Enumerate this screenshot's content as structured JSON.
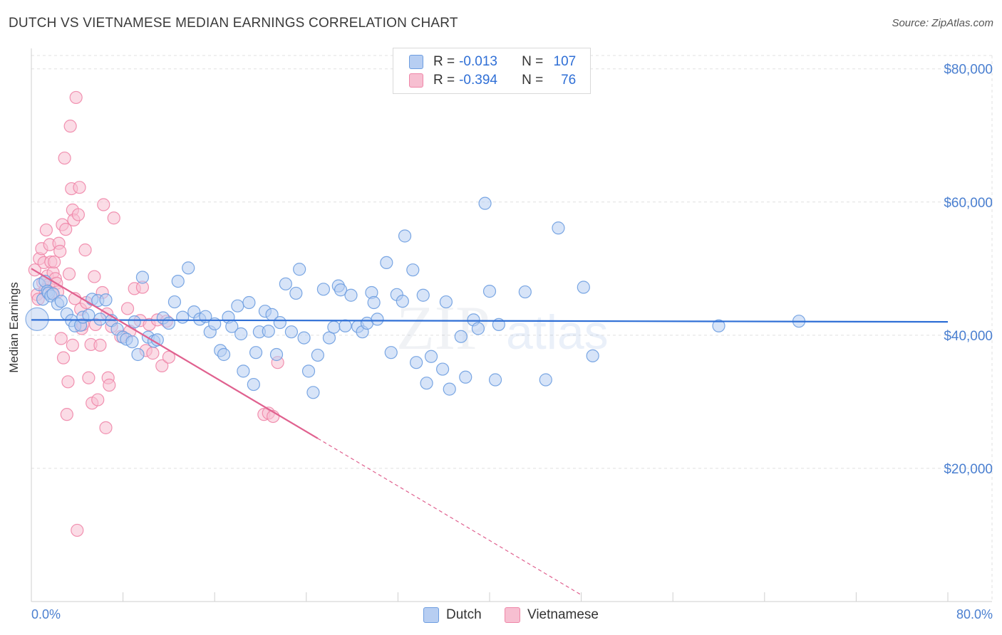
{
  "title": "DUTCH VS VIETNAMESE MEDIAN EARNINGS CORRELATION CHART",
  "source": "Source: ZipAtlas.com",
  "watermark": {
    "text_zip": "ZIP",
    "text_atlas": "atlas"
  },
  "colors": {
    "dutch": "#6d9de0",
    "dutch_fill": "#b7cef2",
    "dutch_line": "#2f6fd6",
    "vietnamese": "#ef86a8",
    "vietnamese_fill": "#f7bfd1",
    "vietnamese_line": "#e0618f",
    "tick_label": "#4a7fd0",
    "grid": "#e0e0e0"
  },
  "legend": {
    "rows": [
      {
        "r_label": "R =",
        "r_value": "-0.013",
        "n_label": "N =",
        "n_value": "107"
      },
      {
        "r_label": "R =",
        "r_value": "-0.394",
        "n_label": "N =",
        "n_value": "76"
      }
    ]
  },
  "bottom_legend": [
    "Dutch",
    "Vietnamese"
  ],
  "chart_data": {
    "type": "scatter",
    "title": "DUTCH VS VIETNAMESE MEDIAN EARNINGS CORRELATION CHART",
    "xlabel": "",
    "ylabel": "Median Earnings",
    "xlim": [
      0,
      80
    ],
    "ylim": [
      0,
      82000
    ],
    "x_tick_labels": [
      "0.0%",
      "80.0%"
    ],
    "y_ticks": [
      20000,
      40000,
      60000,
      80000
    ],
    "y_tick_labels": [
      "$20,000",
      "$40,000",
      "$60,000",
      "$80,000"
    ],
    "grid": true,
    "legend_position": "top-center",
    "series": [
      {
        "name": "Dutch",
        "stats": {
          "R": -0.013,
          "N": 107
        },
        "trend": {
          "x0": 0,
          "y0": 42300,
          "x1": 80,
          "y1": 42000
        },
        "points": [
          [
            0.5,
            42400
          ],
          [
            0.7,
            47600
          ],
          [
            1.0,
            45400
          ],
          [
            1.2,
            48100
          ],
          [
            1.4,
            46600
          ],
          [
            1.5,
            46300
          ],
          [
            1.7,
            45900
          ],
          [
            1.9,
            46200
          ],
          [
            2.3,
            44700
          ],
          [
            2.6,
            45100
          ],
          [
            3.1,
            43200
          ],
          [
            3.5,
            42200
          ],
          [
            3.8,
            41400
          ],
          [
            4.3,
            41500
          ],
          [
            4.5,
            42700
          ],
          [
            5.0,
            43000
          ],
          [
            5.3,
            45400
          ],
          [
            5.8,
            45200
          ],
          [
            6.0,
            42400
          ],
          [
            6.5,
            45300
          ],
          [
            7.0,
            42200
          ],
          [
            7.5,
            40900
          ],
          [
            8.0,
            39700
          ],
          [
            8.3,
            39400
          ],
          [
            8.8,
            39000
          ],
          [
            9.0,
            42000
          ],
          [
            9.3,
            37100
          ],
          [
            9.7,
            48700
          ],
          [
            10.2,
            39700
          ],
          [
            10.7,
            39100
          ],
          [
            11.0,
            39300
          ],
          [
            11.5,
            42600
          ],
          [
            12.0,
            41800
          ],
          [
            12.5,
            45000
          ],
          [
            12.8,
            48100
          ],
          [
            13.2,
            42700
          ],
          [
            13.7,
            50100
          ],
          [
            14.2,
            43500
          ],
          [
            14.7,
            42400
          ],
          [
            15.2,
            42800
          ],
          [
            15.6,
            40500
          ],
          [
            16.0,
            41700
          ],
          [
            16.5,
            37700
          ],
          [
            16.8,
            37100
          ],
          [
            17.2,
            42700
          ],
          [
            17.5,
            41300
          ],
          [
            18.0,
            44400
          ],
          [
            18.3,
            40200
          ],
          [
            18.5,
            34600
          ],
          [
            19.0,
            44900
          ],
          [
            19.4,
            32600
          ],
          [
            19.6,
            37400
          ],
          [
            19.9,
            40500
          ],
          [
            20.4,
            43600
          ],
          [
            20.7,
            40600
          ],
          [
            21.0,
            43100
          ],
          [
            21.4,
            37100
          ],
          [
            21.7,
            41900
          ],
          [
            22.2,
            47700
          ],
          [
            22.7,
            40500
          ],
          [
            23.1,
            46300
          ],
          [
            23.4,
            49900
          ],
          [
            23.8,
            39600
          ],
          [
            24.2,
            34600
          ],
          [
            24.6,
            31400
          ],
          [
            25.0,
            37000
          ],
          [
            25.5,
            46900
          ],
          [
            26.0,
            39600
          ],
          [
            26.4,
            41200
          ],
          [
            26.8,
            47400
          ],
          [
            27.0,
            46800
          ],
          [
            27.4,
            41400
          ],
          [
            27.9,
            46000
          ],
          [
            28.5,
            41300
          ],
          [
            28.9,
            40500
          ],
          [
            29.3,
            41800
          ],
          [
            29.7,
            46400
          ],
          [
            29.9,
            44900
          ],
          [
            30.2,
            42400
          ],
          [
            31.0,
            50900
          ],
          [
            31.4,
            37400
          ],
          [
            31.9,
            46100
          ],
          [
            32.4,
            45100
          ],
          [
            32.6,
            54900
          ],
          [
            33.3,
            49800
          ],
          [
            33.6,
            35900
          ],
          [
            34.2,
            46000
          ],
          [
            34.5,
            32800
          ],
          [
            34.9,
            36800
          ],
          [
            35.9,
            34900
          ],
          [
            36.2,
            45000
          ],
          [
            36.5,
            31900
          ],
          [
            37.5,
            39800
          ],
          [
            37.9,
            33700
          ],
          [
            38.6,
            42300
          ],
          [
            39.0,
            41000
          ],
          [
            39.6,
            59800
          ],
          [
            40.0,
            46600
          ],
          [
            40.5,
            33300
          ],
          [
            40.8,
            41600
          ],
          [
            43.1,
            46500
          ],
          [
            44.9,
            33300
          ],
          [
            46.0,
            56100
          ],
          [
            48.2,
            47200
          ],
          [
            49.0,
            36900
          ],
          [
            60.0,
            41400
          ],
          [
            67.0,
            42100
          ]
        ]
      },
      {
        "name": "Vietnamese",
        "stats": {
          "R": -0.394,
          "N": 76
        },
        "trend": {
          "x0": 0,
          "y0": 50000,
          "x1": 25,
          "y1": 24500,
          "dash_x1": 48,
          "dash_y1": 1000
        },
        "points": [
          [
            0.3,
            49800
          ],
          [
            0.5,
            46100
          ],
          [
            0.7,
            51500
          ],
          [
            0.9,
            53000
          ],
          [
            1.0,
            47900
          ],
          [
            1.1,
            50900
          ],
          [
            1.3,
            55800
          ],
          [
            1.4,
            48900
          ],
          [
            1.5,
            47600
          ],
          [
            1.6,
            53600
          ],
          [
            1.7,
            51000
          ],
          [
            1.8,
            46400
          ],
          [
            1.9,
            49400
          ],
          [
            2.0,
            51000
          ],
          [
            2.1,
            48500
          ],
          [
            2.2,
            47800
          ],
          [
            2.4,
            53800
          ],
          [
            2.5,
            52600
          ],
          [
            2.6,
            39500
          ],
          [
            2.7,
            56600
          ],
          [
            2.8,
            36600
          ],
          [
            2.9,
            66600
          ],
          [
            3.0,
            55900
          ],
          [
            3.1,
            28100
          ],
          [
            3.2,
            33000
          ],
          [
            3.3,
            49200
          ],
          [
            3.4,
            71400
          ],
          [
            3.5,
            62000
          ],
          [
            3.6,
            58800
          ],
          [
            3.7,
            57300
          ],
          [
            3.8,
            45500
          ],
          [
            3.9,
            75700
          ],
          [
            4.0,
            10700
          ],
          [
            4.1,
            58100
          ],
          [
            4.2,
            62200
          ],
          [
            4.3,
            43900
          ],
          [
            4.4,
            41000
          ],
          [
            4.5,
            41600
          ],
          [
            4.7,
            52800
          ],
          [
            4.8,
            44900
          ],
          [
            5.0,
            33600
          ],
          [
            5.2,
            38600
          ],
          [
            5.3,
            29800
          ],
          [
            5.5,
            48800
          ],
          [
            5.6,
            41600
          ],
          [
            5.8,
            30300
          ],
          [
            6.0,
            38500
          ],
          [
            6.2,
            46400
          ],
          [
            6.3,
            59600
          ],
          [
            6.5,
            26100
          ],
          [
            6.6,
            43200
          ],
          [
            6.7,
            33600
          ],
          [
            6.8,
            32500
          ],
          [
            7.0,
            41300
          ],
          [
            7.2,
            57600
          ],
          [
            7.8,
            39800
          ],
          [
            8.4,
            44000
          ],
          [
            8.6,
            40600
          ],
          [
            9.0,
            47000
          ],
          [
            9.5,
            42200
          ],
          [
            9.7,
            47200
          ],
          [
            10.0,
            37700
          ],
          [
            10.3,
            41600
          ],
          [
            10.6,
            37300
          ],
          [
            11.0,
            42300
          ],
          [
            11.4,
            35400
          ],
          [
            11.8,
            42100
          ],
          [
            12.0,
            36700
          ],
          [
            20.3,
            28100
          ],
          [
            20.7,
            28300
          ],
          [
            21.1,
            27800
          ],
          [
            21.5,
            35900
          ],
          [
            0.6,
            45400
          ],
          [
            1.2,
            46800
          ],
          [
            2.3,
            46500
          ],
          [
            3.6,
            38500
          ]
        ]
      }
    ]
  }
}
